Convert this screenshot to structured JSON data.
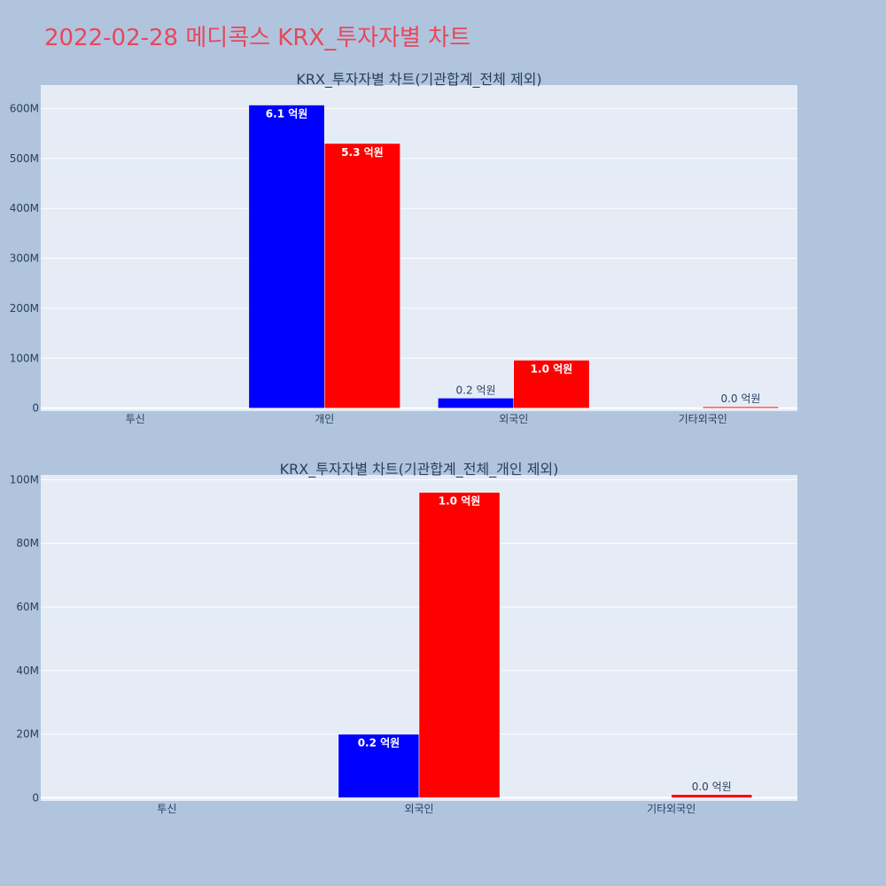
{
  "page_title": "2022-02-28 메디콕스 KRX_투자자별 차트",
  "colors": {
    "background": "#b0c4de",
    "plot_bg": "#e5ecf6",
    "title": "#e8475a",
    "series_a": "#0000ff",
    "series_b": "#ff0000",
    "text": "#2a3f5f"
  },
  "chart_data": [
    {
      "type": "bar",
      "title": "KRX_투자자별 차트(기관합계_전체 제외)",
      "categories": [
        "투신",
        "개인",
        "외국인",
        "기타외국인"
      ],
      "series": [
        {
          "color": "#0000ff",
          "values": [
            0,
            607000000,
            20000000,
            0
          ],
          "labels": [
            "",
            "6.1 억원",
            "0.2 억원",
            ""
          ]
        },
        {
          "color": "#ff0000",
          "values": [
            0,
            530000000,
            96000000,
            1000000
          ],
          "labels": [
            "",
            "5.3 억원",
            "1.0 억원",
            "0.0 억원"
          ]
        }
      ],
      "ylim": [
        -6000000,
        647000000
      ],
      "yticks": [
        0,
        100000000,
        200000000,
        300000000,
        400000000,
        500000000,
        600000000
      ],
      "ytick_labels": [
        "0",
        "100M",
        "200M",
        "300M",
        "400M",
        "500M",
        "600M"
      ],
      "grid": true
    },
    {
      "type": "bar",
      "title": "KRX_투자자별 차트(기관합계_전체_개인 제외)",
      "categories": [
        "투신",
        "외국인",
        "기타외국인"
      ],
      "series": [
        {
          "color": "#0000ff",
          "values": [
            0,
            20000000,
            0
          ],
          "labels": [
            "",
            "0.2 억원",
            ""
          ]
        },
        {
          "color": "#ff0000",
          "values": [
            0,
            96000000,
            1000000
          ],
          "labels": [
            "",
            "1.0 억원",
            "0.0 억원"
          ]
        }
      ],
      "ylim": [
        -1000000,
        101500000
      ],
      "yticks": [
        0,
        20000000,
        40000000,
        60000000,
        80000000,
        100000000
      ],
      "ytick_labels": [
        "0",
        "20M",
        "40M",
        "60M",
        "80M",
        "100M"
      ],
      "grid": true
    }
  ]
}
